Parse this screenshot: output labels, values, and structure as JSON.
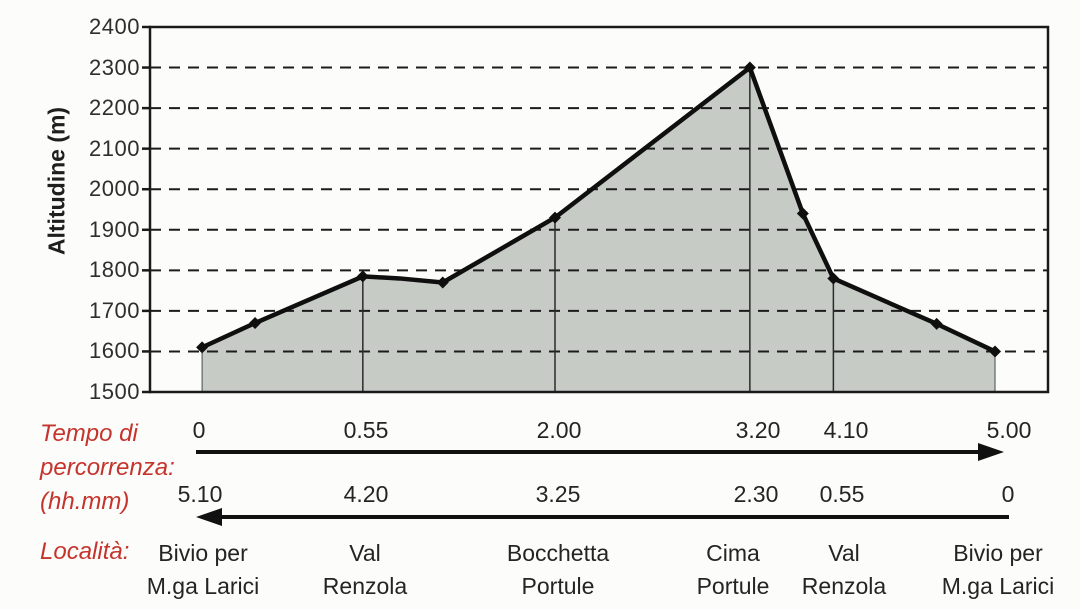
{
  "figure": {
    "background": "#fcfcfb",
    "accent_red": "#c5342c",
    "axis_title": "Altitudine (m)",
    "time_label_line1": "Tempo di",
    "time_label_line2": "percorrenza:",
    "time_label_line3": "(hh.mm)",
    "localita_label": "Località:"
  },
  "columns": [
    {
      "time_fwd": "0",
      "time_back": "5.10",
      "name_line1": "Bivio per",
      "name_line2": "M.ga Larici"
    },
    {
      "time_fwd": "0.55",
      "time_back": "4.20",
      "name_line1": "Val",
      "name_line2": "Renzola"
    },
    {
      "time_fwd": "2.00",
      "time_back": "3.25",
      "name_line1": "Bocchetta",
      "name_line2": "Portule"
    },
    {
      "time_fwd": "3.20",
      "time_back": "2.30",
      "name_line1": "Cima",
      "name_line2": "Portule"
    },
    {
      "time_fwd": "4.10",
      "time_back": "0.55",
      "name_line1": "Val",
      "name_line2": "Renzola"
    },
    {
      "time_fwd": "5.00",
      "time_back": "0",
      "name_line1": "Bivio per",
      "name_line2": "M.ga Larici"
    }
  ],
  "chart_data": {
    "type": "area",
    "title": "",
    "xlabel": "Tempo di percorrenza: (hh.mm)",
    "ylabel": "Altitudine (m)",
    "ylim": [
      1500,
      2400
    ],
    "ytick_labels": [
      "2400",
      "2300",
      "2200",
      "2100",
      "2000",
      "1900",
      "1800",
      "1700",
      "1600",
      "1500"
    ],
    "grid": "horizontal dashed lines every 100 m",
    "fill_color": "#c6cbc6",
    "line_color": "#0f0f0f",
    "profile": [
      {
        "pos": 0.058,
        "alt": 1610,
        "marker": true,
        "station": "Bivio per M.ga Larici",
        "time_fwd": "0",
        "time_back": "5.10"
      },
      {
        "pos": 0.117,
        "alt": 1670,
        "marker": true
      },
      {
        "pos": 0.237,
        "alt": 1785,
        "marker": true,
        "station": "Val Renzola",
        "time_fwd": "0.55",
        "time_back": "4.20"
      },
      {
        "pos": 0.278,
        "alt": 1780,
        "marker": false
      },
      {
        "pos": 0.326,
        "alt": 1770,
        "marker": true
      },
      {
        "pos": 0.451,
        "alt": 1930,
        "marker": true,
        "station": "Bocchetta Portule",
        "time_fwd": "2.00",
        "time_back": "3.25"
      },
      {
        "pos": 0.668,
        "alt": 2300,
        "marker": true,
        "station": "Cima Portule",
        "time_fwd": "3.20",
        "time_back": "2.30"
      },
      {
        "pos": 0.727,
        "alt": 1940,
        "marker": true
      },
      {
        "pos": 0.761,
        "alt": 1780,
        "marker": true,
        "station": "Val Renzola",
        "time_fwd": "4.10",
        "time_back": "0.55"
      },
      {
        "pos": 0.876,
        "alt": 1668,
        "marker": true
      },
      {
        "pos": 0.941,
        "alt": 1600,
        "marker": true,
        "station": "Bivio per M.ga Larici",
        "time_fwd": "5.00",
        "time_back": "0"
      }
    ],
    "station_vline_pos": [
      0.237,
      0.451,
      0.668,
      0.761
    ],
    "time_axis_direction_forward": "left-to-right arrow",
    "time_axis_direction_return": "right-to-left arrow"
  }
}
